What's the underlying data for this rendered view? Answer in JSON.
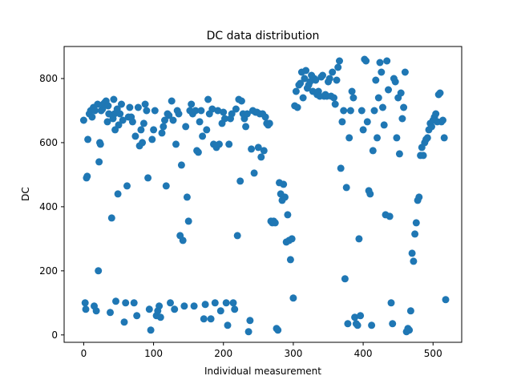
{
  "chart_data": {
    "type": "scatter",
    "title": "DC data distribution",
    "xlabel": "Individual measurement",
    "ylabel": "DC",
    "xlim": [
      -28,
      541
    ],
    "ylim": [
      -23,
      900
    ],
    "xticks": [
      0,
      100,
      200,
      300,
      400,
      500
    ],
    "yticks": [
      0,
      200,
      400,
      600,
      800
    ],
    "grid": false,
    "marker_color": "#1f77b4",
    "series": [
      {
        "values": [
          [
            0,
            670
          ],
          [
            2,
            100
          ],
          [
            3,
            80
          ],
          [
            4,
            490
          ],
          [
            5,
            495
          ],
          [
            6,
            610
          ],
          [
            8,
            690
          ],
          [
            10,
            700
          ],
          [
            12,
            680
          ],
          [
            14,
            710
          ],
          [
            15,
            90
          ],
          [
            16,
            700
          ],
          [
            18,
            75
          ],
          [
            20,
            720
          ],
          [
            21,
            200
          ],
          [
            22,
            540
          ],
          [
            23,
            600
          ],
          [
            24,
            595
          ],
          [
            25,
            700
          ],
          [
            27,
            705
          ],
          [
            28,
            720
          ],
          [
            30,
            725
          ],
          [
            32,
            730
          ],
          [
            34,
            665
          ],
          [
            35,
            715
          ],
          [
            36,
            690
          ],
          [
            38,
            70
          ],
          [
            40,
            365
          ],
          [
            42,
            675
          ],
          [
            43,
            735
          ],
          [
            44,
            690
          ],
          [
            45,
            640
          ],
          [
            46,
            105
          ],
          [
            48,
            705
          ],
          [
            49,
            440
          ],
          [
            50,
            655
          ],
          [
            52,
            690
          ],
          [
            54,
            720
          ],
          [
            56,
            670
          ],
          [
            58,
            40
          ],
          [
            60,
            100
          ],
          [
            62,
            465
          ],
          [
            64,
            680
          ],
          [
            66,
            710
          ],
          [
            68,
            680
          ],
          [
            70,
            665
          ],
          [
            72,
            100
          ],
          [
            74,
            620
          ],
          [
            76,
            60
          ],
          [
            78,
            710
          ],
          [
            80,
            590
          ],
          [
            82,
            640
          ],
          [
            84,
            600
          ],
          [
            86,
            660
          ],
          [
            88,
            720
          ],
          [
            90,
            700
          ],
          [
            92,
            490
          ],
          [
            94,
            80
          ],
          [
            96,
            15
          ],
          [
            98,
            610
          ],
          [
            100,
            640
          ],
          [
            102,
            700
          ],
          [
            104,
            60
          ],
          [
            106,
            75
          ],
          [
            108,
            90
          ],
          [
            110,
            55
          ],
          [
            112,
            630
          ],
          [
            114,
            650
          ],
          [
            116,
            670
          ],
          [
            118,
            465
          ],
          [
            120,
            690
          ],
          [
            122,
            685
          ],
          [
            124,
            100
          ],
          [
            126,
            730
          ],
          [
            128,
            670
          ],
          [
            130,
            80
          ],
          [
            132,
            595
          ],
          [
            134,
            700
          ],
          [
            136,
            690
          ],
          [
            138,
            310
          ],
          [
            140,
            530
          ],
          [
            142,
            295
          ],
          [
            144,
            90
          ],
          [
            146,
            650
          ],
          [
            148,
            430
          ],
          [
            150,
            355
          ],
          [
            152,
            700
          ],
          [
            154,
            720
          ],
          [
            156,
            690
          ],
          [
            158,
            90
          ],
          [
            160,
            700
          ],
          [
            162,
            575
          ],
          [
            164,
            570
          ],
          [
            166,
            665
          ],
          [
            168,
            700
          ],
          [
            170,
            620
          ],
          [
            172,
            50
          ],
          [
            174,
            95
          ],
          [
            176,
            640
          ],
          [
            178,
            735
          ],
          [
            180,
            690
          ],
          [
            182,
            50
          ],
          [
            184,
            705
          ],
          [
            186,
            595
          ],
          [
            188,
            100
          ],
          [
            190,
            585
          ],
          [
            192,
            700
          ],
          [
            194,
            595
          ],
          [
            196,
            75
          ],
          [
            198,
            660
          ],
          [
            200,
            695
          ],
          [
            202,
            675
          ],
          [
            204,
            100
          ],
          [
            206,
            30
          ],
          [
            208,
            595
          ],
          [
            210,
            675
          ],
          [
            212,
            690
          ],
          [
            214,
            100
          ],
          [
            216,
            80
          ],
          [
            218,
            705
          ],
          [
            220,
            310
          ],
          [
            222,
            735
          ],
          [
            224,
            480
          ],
          [
            226,
            730
          ],
          [
            228,
            690
          ],
          [
            230,
            675
          ],
          [
            232,
            650
          ],
          [
            234,
            690
          ],
          [
            236,
            10
          ],
          [
            238,
            45
          ],
          [
            240,
            580
          ],
          [
            242,
            700
          ],
          [
            244,
            505
          ],
          [
            246,
            695
          ],
          [
            248,
            695
          ],
          [
            250,
            585
          ],
          [
            252,
            690
          ],
          [
            254,
            555
          ],
          [
            256,
            690
          ],
          [
            258,
            575
          ],
          [
            260,
            680
          ],
          [
            262,
            660
          ],
          [
            264,
            655
          ],
          [
            266,
            660
          ],
          [
            268,
            355
          ],
          [
            270,
            350
          ],
          [
            272,
            355
          ],
          [
            274,
            350
          ],
          [
            276,
            20
          ],
          [
            278,
            15
          ],
          [
            280,
            475
          ],
          [
            282,
            440
          ],
          [
            284,
            420
          ],
          [
            286,
            470
          ],
          [
            288,
            430
          ],
          [
            290,
            290
          ],
          [
            292,
            375
          ],
          [
            294,
            295
          ],
          [
            296,
            235
          ],
          [
            298,
            300
          ],
          [
            300,
            115
          ],
          [
            302,
            715
          ],
          [
            304,
            760
          ],
          [
            306,
            710
          ],
          [
            308,
            780
          ],
          [
            310,
            785
          ],
          [
            312,
            820
          ],
          [
            314,
            740
          ],
          [
            316,
            800
          ],
          [
            318,
            825
          ],
          [
            320,
            770
          ],
          [
            322,
            780
          ],
          [
            324,
            790
          ],
          [
            326,
            810
          ],
          [
            328,
            760
          ],
          [
            330,
            800
          ],
          [
            332,
            795
          ],
          [
            334,
            750
          ],
          [
            336,
            760
          ],
          [
            338,
            745
          ],
          [
            340,
            805
          ],
          [
            342,
            810
          ],
          [
            344,
            745
          ],
          [
            346,
            750
          ],
          [
            348,
            745
          ],
          [
            350,
            790
          ],
          [
            352,
            800
          ],
          [
            354,
            745
          ],
          [
            356,
            820
          ],
          [
            358,
            740
          ],
          [
            360,
            720
          ],
          [
            362,
            795
          ],
          [
            364,
            835
          ],
          [
            366,
            855
          ],
          [
            368,
            520
          ],
          [
            370,
            665
          ],
          [
            372,
            700
          ],
          [
            374,
            175
          ],
          [
            376,
            460
          ],
          [
            378,
            35
          ],
          [
            380,
            615
          ],
          [
            382,
            700
          ],
          [
            384,
            760
          ],
          [
            386,
            740
          ],
          [
            388,
            55
          ],
          [
            390,
            35
          ],
          [
            392,
            30
          ],
          [
            394,
            300
          ],
          [
            396,
            60
          ],
          [
            398,
            700
          ],
          [
            400,
            640
          ],
          [
            402,
            860
          ],
          [
            404,
            855
          ],
          [
            406,
            665
          ],
          [
            408,
            450
          ],
          [
            410,
            440
          ],
          [
            412,
            30
          ],
          [
            414,
            575
          ],
          [
            416,
            700
          ],
          [
            418,
            795
          ],
          [
            420,
            615
          ],
          [
            422,
            740
          ],
          [
            424,
            850
          ],
          [
            426,
            820
          ],
          [
            428,
            710
          ],
          [
            430,
            655
          ],
          [
            432,
            375
          ],
          [
            434,
            855
          ],
          [
            436,
            765
          ],
          [
            438,
            370
          ],
          [
            440,
            100
          ],
          [
            442,
            35
          ],
          [
            444,
            800
          ],
          [
            446,
            790
          ],
          [
            448,
            615
          ],
          [
            450,
            740
          ],
          [
            452,
            565
          ],
          [
            454,
            755
          ],
          [
            456,
            675
          ],
          [
            458,
            710
          ],
          [
            460,
            820
          ],
          [
            462,
            10
          ],
          [
            464,
            20
          ],
          [
            466,
            15
          ],
          [
            468,
            75
          ],
          [
            470,
            255
          ],
          [
            472,
            230
          ],
          [
            474,
            315
          ],
          [
            476,
            350
          ],
          [
            478,
            420
          ],
          [
            480,
            430
          ],
          [
            482,
            560
          ],
          [
            484,
            585
          ],
          [
            486,
            560
          ],
          [
            488,
            600
          ],
          [
            490,
            610
          ],
          [
            492,
            615
          ],
          [
            494,
            640
          ],
          [
            496,
            660
          ],
          [
            498,
            650
          ],
          [
            500,
            670
          ],
          [
            502,
            680
          ],
          [
            504,
            690
          ],
          [
            506,
            665
          ],
          [
            508,
            750
          ],
          [
            510,
            755
          ],
          [
            512,
            665
          ],
          [
            514,
            670
          ],
          [
            516,
            615
          ],
          [
            518,
            110
          ]
        ]
      }
    ]
  }
}
